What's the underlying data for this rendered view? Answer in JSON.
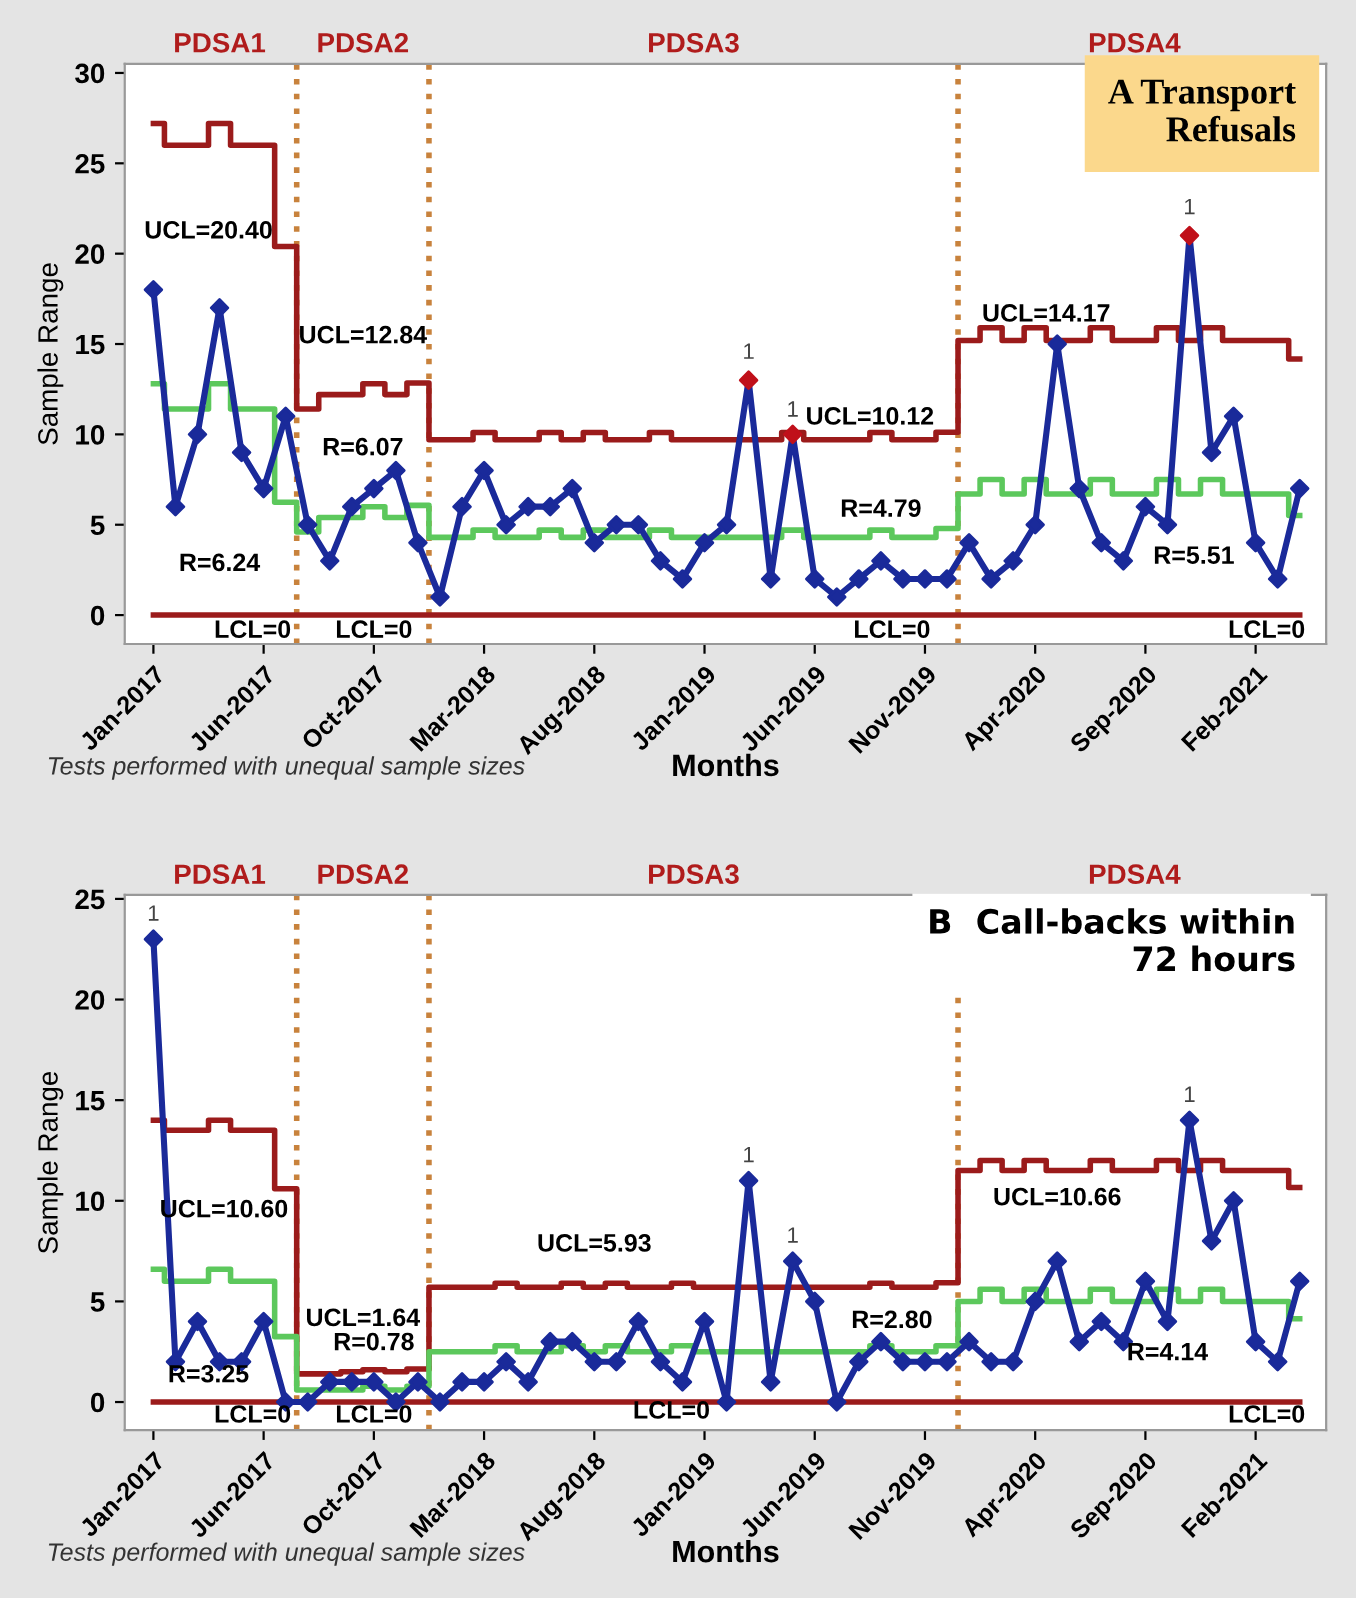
{
  "chart_data": [
    {
      "type": "line",
      "title": "A Transport\nRefusals",
      "xlabel": "Months",
      "ylabel": "Sample Range",
      "categories": [
        "Jan-2017",
        null,
        null,
        null,
        null,
        "Jun-2017",
        null,
        null,
        null,
        null,
        "Oct-2017",
        null,
        null,
        null,
        null,
        "Mar-2018",
        null,
        null,
        null,
        null,
        "Aug-2018",
        null,
        null,
        null,
        null,
        "Jan-2019",
        null,
        null,
        null,
        null,
        "Jun-2019",
        null,
        null,
        null,
        null,
        "Nov-2019",
        null,
        null,
        null,
        null,
        "Apr-2020",
        null,
        null,
        null,
        null,
        "Sep-2020",
        null,
        null,
        null,
        null,
        "Feb-2021",
        null,
        null
      ],
      "ylim": [
        -1.6,
        30.5
      ],
      "yticks": [
        0,
        5,
        10,
        15,
        20,
        25,
        30
      ],
      "series": [
        {
          "type": "step",
          "color": "#9b1b1b",
          "values": [
            27.2,
            26,
            26,
            27.2,
            26,
            26,
            20.4,
            11.4,
            12.2,
            12.2,
            12.8,
            12.2,
            12.84,
            9.7,
            9.7,
            10.1,
            9.7,
            9.7,
            10.1,
            9.7,
            10.1,
            9.7,
            9.7,
            10.1,
            9.7,
            9.7,
            9.7,
            9.7,
            9.7,
            10.1,
            9.7,
            9.7,
            9.7,
            10.1,
            9.7,
            9.7,
            10.12,
            15.2,
            15.9,
            15.2,
            15.9,
            15.2,
            15.2,
            15.9,
            15.2,
            15.2,
            15.9,
            15.2,
            15.9,
            15.2,
            15.2,
            15.2,
            14.17
          ]
        },
        {
          "type": "step",
          "color": "#5cc85c",
          "values": [
            12.8,
            11.4,
            11.4,
            12.8,
            11.4,
            11.4,
            6.24,
            4.6,
            5.4,
            5.4,
            6.0,
            5.4,
            6.07,
            4.3,
            4.3,
            4.7,
            4.3,
            4.3,
            4.7,
            4.3,
            4.7,
            4.3,
            4.3,
            4.7,
            4.3,
            4.3,
            4.3,
            4.3,
            4.3,
            4.7,
            4.3,
            4.3,
            4.3,
            4.7,
            4.3,
            4.3,
            4.79,
            6.7,
            7.5,
            6.7,
            7.5,
            6.7,
            6.7,
            7.5,
            6.7,
            6.7,
            7.5,
            6.7,
            7.5,
            6.7,
            6.7,
            6.7,
            5.51
          ]
        },
        {
          "type": "step",
          "color": "#9b1b1b",
          "values": [
            0,
            0,
            0,
            0,
            0,
            0,
            0,
            0,
            0,
            0,
            0,
            0,
            0,
            0,
            0,
            0,
            0,
            0,
            0,
            0,
            0,
            0,
            0,
            0,
            0,
            0,
            0,
            0,
            0,
            0,
            0,
            0,
            0,
            0,
            0,
            0,
            0,
            0,
            0,
            0,
            0,
            0,
            0,
            0,
            0,
            0,
            0,
            0,
            0,
            0,
            0,
            0,
            0
          ]
        },
        {
          "color": "#1a2a9a",
          "marker": "diamond",
          "values": [
            18,
            6,
            10,
            17,
            9,
            7,
            11,
            5,
            3,
            6,
            7,
            8,
            4,
            1,
            6,
            8,
            5,
            6,
            6,
            7,
            4,
            5,
            5,
            3,
            2,
            4,
            5,
            13,
            2,
            10,
            2,
            1,
            2,
            3,
            2,
            2,
            2,
            4,
            2,
            3,
            5,
            15,
            7,
            4,
            3,
            6,
            5,
            21,
            9,
            11,
            4,
            2,
            7
          ],
          "colors": [
            "#1a2a9a",
            "#1a2a9a",
            "#1a2a9a",
            "#1a2a9a",
            "#1a2a9a",
            "#1a2a9a",
            "#1a2a9a",
            "#1a2a9a",
            "#1a2a9a",
            "#1a2a9a",
            "#1a2a9a",
            "#1a2a9a",
            "#1a2a9a",
            "#1a2a9a",
            "#1a2a9a",
            "#1a2a9a",
            "#1a2a9a",
            "#1a2a9a",
            "#1a2a9a",
            "#1a2a9a",
            "#1a2a9a",
            "#1a2a9a",
            "#1a2a9a",
            "#1a2a9a",
            "#1a2a9a",
            "#1a2a9a",
            "#1a2a9a",
            "#c0101a",
            "#1a2a9a",
            "#c0101a",
            "#1a2a9a",
            "#1a2a9a",
            "#1a2a9a",
            "#1a2a9a",
            "#1a2a9a",
            "#1a2a9a",
            "#1a2a9a",
            "#1a2a9a",
            "#1a2a9a",
            "#1a2a9a",
            "#1a2a9a",
            "#1a2a9a",
            "#1a2a9a",
            "#1a2a9a",
            "#1a2a9a",
            "#1a2a9a",
            "#1a2a9a",
            "#c0101a",
            "#1a2a9a",
            "#1a2a9a",
            "#1a2a9a",
            "#1a2a9a",
            "#1a2a9a"
          ]
        }
      ],
      "annotations": [
        "PDSA1",
        "PDSA2",
        "PDSA3",
        "PDSA4",
        "UCL=20.40",
        "R=6.24",
        "LCL=0",
        "UCL=12.84",
        "R=6.07",
        "LCL=0",
        "UCL=10.12",
        "R=4.79",
        "LCL=0",
        "UCL=14.17",
        "R=5.51",
        "LCL=0",
        "1",
        "1",
        "1",
        "Tests performed with unequal sample sizes"
      ]
    },
    {
      "type": "line",
      "title": "B  Call-backs within\n72 hours",
      "xlabel": "Months",
      "ylabel": "Sample Range",
      "categories": [
        "Jan-2017",
        null,
        null,
        null,
        null,
        "Jun-2017",
        null,
        null,
        null,
        null,
        "Oct-2017",
        null,
        null,
        null,
        null,
        "Mar-2018",
        null,
        null,
        null,
        null,
        "Aug-2018",
        null,
        null,
        null,
        null,
        "Jan-2019",
        null,
        null,
        null,
        null,
        "Jun-2019",
        null,
        null,
        null,
        null,
        "Nov-2019",
        null,
        null,
        null,
        null,
        "Apr-2020",
        null,
        null,
        null,
        null,
        "Sep-2020",
        null,
        null,
        null,
        null,
        "Feb-2021",
        null,
        null
      ],
      "ylim": [
        -1.4,
        25.2
      ],
      "yticks": [
        0,
        5,
        10,
        15,
        20,
        25
      ],
      "series": [
        {
          "type": "step",
          "color": "#9b1b1b",
          "values": [
            14.0,
            13.5,
            13.5,
            14.0,
            13.5,
            13.5,
            10.6,
            1.4,
            1.4,
            1.5,
            1.6,
            1.5,
            1.64,
            5.7,
            5.7,
            5.7,
            5.9,
            5.7,
            5.7,
            5.9,
            5.7,
            5.9,
            5.7,
            5.7,
            5.9,
            5.7,
            5.7,
            5.7,
            5.7,
            5.7,
            5.7,
            5.7,
            5.7,
            5.9,
            5.7,
            5.7,
            5.93,
            11.5,
            12.0,
            11.5,
            12.0,
            11.5,
            11.5,
            12.0,
            11.5,
            11.5,
            12.0,
            11.5,
            12.0,
            11.5,
            11.5,
            11.5,
            10.66
          ]
        },
        {
          "type": "step",
          "color": "#5cc85c",
          "values": [
            6.6,
            6.0,
            6.0,
            6.6,
            6.0,
            6.0,
            3.25,
            0.6,
            0.6,
            0.6,
            0.78,
            0.6,
            0.78,
            2.5,
            2.5,
            2.5,
            2.8,
            2.5,
            2.5,
            2.8,
            2.5,
            2.8,
            2.5,
            2.5,
            2.8,
            2.5,
            2.5,
            2.5,
            2.5,
            2.5,
            2.5,
            2.5,
            2.5,
            2.8,
            2.5,
            2.5,
            2.8,
            5.0,
            5.6,
            5.0,
            5.6,
            5.0,
            5.0,
            5.6,
            5.0,
            5.0,
            5.6,
            5.0,
            5.6,
            5.0,
            5.0,
            5.0,
            4.14
          ]
        },
        {
          "type": "step",
          "color": "#9b1b1b",
          "values": [
            0,
            0,
            0,
            0,
            0,
            0,
            0,
            0,
            0,
            0,
            0,
            0,
            0,
            0,
            0,
            0,
            0,
            0,
            0,
            0,
            0,
            0,
            0,
            0,
            0,
            0,
            0,
            0,
            0,
            0,
            0,
            0,
            0,
            0,
            0,
            0,
            0,
            0,
            0,
            0,
            0,
            0,
            0,
            0,
            0,
            0,
            0,
            0,
            0,
            0,
            0,
            0,
            0
          ]
        },
        {
          "color": "#1a2a9a",
          "marker": "diamond",
          "values": [
            23,
            2,
            4,
            2,
            2,
            4,
            0,
            0,
            1,
            1,
            1,
            0,
            1,
            0,
            1,
            1,
            2,
            1,
            3,
            3,
            2,
            2,
            4,
            2,
            1,
            4,
            0,
            11,
            1,
            7,
            5,
            0,
            2,
            3,
            2,
            2,
            2,
            3,
            2,
            2,
            5,
            7,
            3,
            4,
            3,
            6,
            4,
            14,
            8,
            10,
            3,
            2,
            6
          ]
        }
      ],
      "annotations": [
        "PDSA1",
        "PDSA2",
        "PDSA3",
        "PDSA4",
        "UCL=10.60",
        "R=3.25",
        "LCL=0",
        "UCL=1.64",
        "R=0.78",
        "LCL=0",
        "UCL=5.93",
        "R=2.80",
        "LCL=0",
        "UCL=10.66",
        "R=4.14",
        "LCL=0",
        "1",
        "1",
        "1",
        "1",
        "Tests performed with unequal sample sizes"
      ]
    }
  ]
}
